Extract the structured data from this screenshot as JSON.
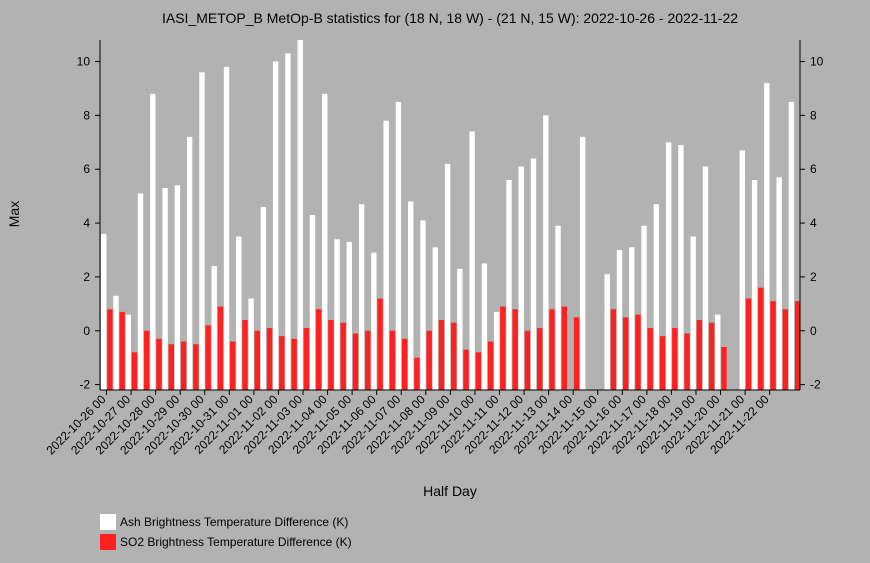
{
  "chart_data": {
    "type": "bar",
    "title": "IASI_METOP_B MetOp-B statistics for (18 N, 18 W) - (21 N, 15 W): 2022-10-26 - 2022-11-22",
    "xlabel": "Half Day",
    "ylabel": "Max",
    "ylim": [
      -2.2,
      10.8
    ],
    "yticks": [
      -2,
      0,
      2,
      4,
      6,
      8,
      10
    ],
    "legend_position": "bottom-left",
    "colors": {
      "ash": "#ffffff",
      "so2": "#ff2020",
      "background": "#b2b2b2"
    },
    "date_labels": [
      "2022-10-26 00",
      "2022-10-27 00",
      "2022-10-28 00",
      "2022-10-29 00",
      "2022-10-30 00",
      "2022-10-31 00",
      "2022-11-01 00",
      "2022-11-02 00",
      "2022-11-03 00",
      "2022-11-04 00",
      "2022-11-05 00",
      "2022-11-06 00",
      "2022-11-07 00",
      "2022-11-08 00",
      "2022-11-09 00",
      "2022-11-10 00",
      "2022-11-11 00",
      "2022-11-12 00",
      "2022-11-13 00",
      "2022-11-14 00",
      "2022-11-15 00",
      "2022-11-16 00",
      "2022-11-17 00",
      "2022-11-18 00",
      "2022-11-19 00",
      "2022-11-20 00",
      "2022-11-21 00",
      "2022-11-22 00"
    ],
    "series": [
      {
        "name": "Ash Brightness Temperature Difference (K)",
        "values": [
          3.6,
          1.3,
          0.6,
          5.1,
          8.8,
          5.3,
          5.4,
          7.2,
          9.6,
          2.4,
          9.8,
          3.5,
          1.2,
          4.6,
          10.0,
          10.3,
          10.8,
          4.3,
          8.8,
          3.4,
          3.3,
          4.7,
          2.9,
          7.8,
          8.5,
          4.8,
          4.1,
          3.1,
          6.2,
          2.3,
          7.4,
          2.5,
          0.7,
          5.6,
          6.1,
          6.4,
          8.0,
          3.9,
          null,
          7.2,
          null,
          2.1,
          3.0,
          3.1,
          3.9,
          4.7,
          7.0,
          6.9,
          3.5,
          6.1,
          0.6,
          null,
          6.7,
          5.6,
          9.2,
          5.7,
          8.5
        ]
      },
      {
        "name": "SO2 Brightness Temperature Difference (K)",
        "values": [
          0.8,
          0.7,
          -0.8,
          0.0,
          -0.3,
          -0.5,
          -0.4,
          -0.5,
          0.2,
          0.9,
          -0.4,
          0.4,
          0.0,
          0.1,
          -0.2,
          -0.3,
          0.1,
          0.8,
          0.4,
          0.3,
          -0.1,
          0.0,
          1.2,
          0.0,
          -0.3,
          -1.0,
          0.0,
          0.4,
          0.3,
          -0.7,
          -0.8,
          -0.4,
          0.9,
          0.8,
          0.0,
          0.1,
          0.8,
          0.9,
          0.5,
          null,
          null,
          0.8,
          0.5,
          0.6,
          0.1,
          -0.2,
          0.1,
          -0.1,
          0.4,
          0.3,
          -0.6,
          null,
          1.2,
          1.6,
          1.1,
          0.8,
          1.1
        ]
      }
    ]
  }
}
